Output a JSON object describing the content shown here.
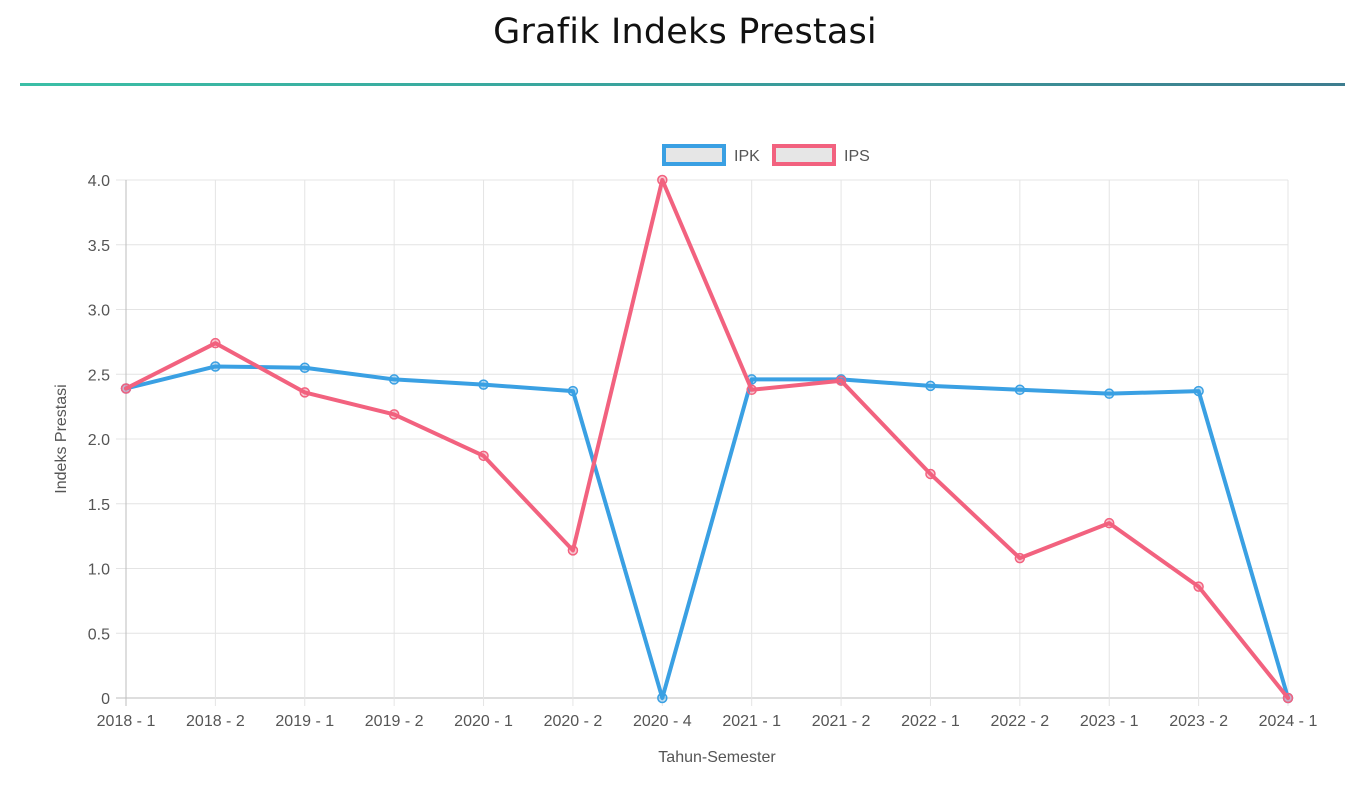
{
  "page": {
    "title": "Grafik Indeks Prestasi"
  },
  "colors": {
    "ipk": "#3aa0e3",
    "ips": "#f2627f",
    "grid": "#e4e4e4",
    "axis": "#bdbdbd",
    "legend_fill": "#e6e6e6"
  },
  "chart_data": {
    "type": "line",
    "title": "",
    "xlabel": "Tahun-Semester",
    "ylabel": "Indeks Prestasi",
    "ylim": [
      0,
      4
    ],
    "ystep": 0.5,
    "ytick_labels": [
      "0",
      "0.5",
      "1.0",
      "1.5",
      "2.0",
      "2.5",
      "3.0",
      "3.5",
      "4.0"
    ],
    "grid": true,
    "legend_position": "top-center",
    "categories": [
      "2018 - 1",
      "2018 - 2",
      "2019 - 1",
      "2019 - 2",
      "2020 - 1",
      "2020 - 2",
      "2020 - 4",
      "2021 - 1",
      "2021 - 2",
      "2022 - 1",
      "2022 - 2",
      "2023 - 1",
      "2023 - 2",
      "2024 - 1"
    ],
    "series": [
      {
        "name": "IPK",
        "color": "#3aa0e3",
        "values": [
          2.39,
          2.56,
          2.55,
          2.46,
          2.42,
          2.37,
          0.0,
          2.46,
          2.46,
          2.41,
          2.38,
          2.35,
          2.37,
          0.0
        ]
      },
      {
        "name": "IPS",
        "color": "#f2627f",
        "values": [
          2.39,
          2.74,
          2.36,
          2.19,
          1.87,
          1.14,
          4.0,
          2.38,
          2.45,
          1.73,
          1.08,
          1.35,
          0.86,
          0.0
        ]
      }
    ]
  }
}
